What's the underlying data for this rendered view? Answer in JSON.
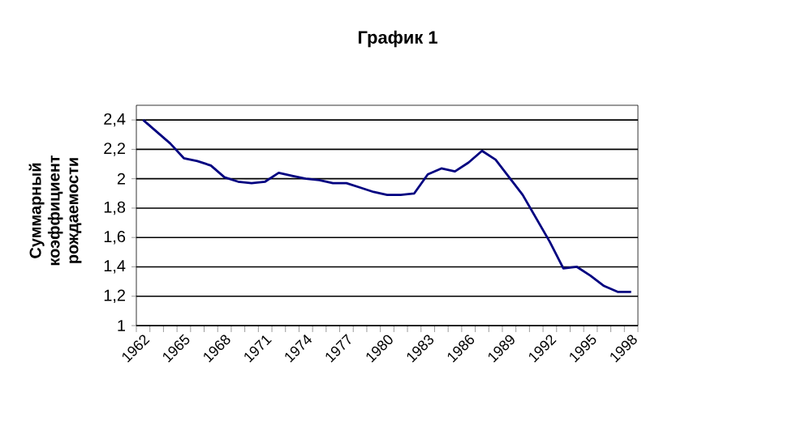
{
  "chart_data": {
    "type": "line",
    "title": "График 1",
    "ylabel": "Суммарный коэффициент рождаемости",
    "categories": [
      "1962",
      null,
      null,
      "1965",
      null,
      null,
      "1968",
      null,
      null,
      "1971",
      null,
      null,
      "1974",
      null,
      null,
      "1977",
      null,
      null,
      "1980",
      null,
      null,
      "1983",
      null,
      null,
      "1986",
      null,
      null,
      "1989",
      null,
      null,
      "1992",
      null,
      null,
      "1995",
      null,
      null,
      "1998"
    ],
    "series": [
      {
        "color": "#000080",
        "values": [
          2.4,
          2.32,
          2.24,
          2.14,
          2.12,
          2.09,
          2.01,
          1.98,
          1.97,
          1.98,
          2.04,
          2.02,
          2.0,
          1.99,
          1.97,
          1.97,
          1.94,
          1.91,
          1.89,
          1.89,
          1.9,
          2.03,
          2.07,
          2.05,
          2.11,
          2.19,
          2.13,
          2.01,
          1.89,
          1.73,
          1.57,
          1.39,
          1.4,
          1.34,
          1.27,
          1.23,
          1.23
        ]
      }
    ],
    "ylim": [
      1,
      2.5
    ],
    "yticks": [
      1,
      {
        "value": 1.2,
        "label": "1,2"
      },
      {
        "value": 1.4,
        "label": "1,4"
      },
      {
        "value": 1.6,
        "label": "1,6"
      },
      {
        "value": 1.8,
        "label": "1,8"
      },
      2,
      {
        "value": 2.2,
        "label": "2,2"
      },
      {
        "value": 2.4,
        "label": "2,4"
      }
    ],
    "grid": "y",
    "marker": "none",
    "line_style": "solid"
  }
}
